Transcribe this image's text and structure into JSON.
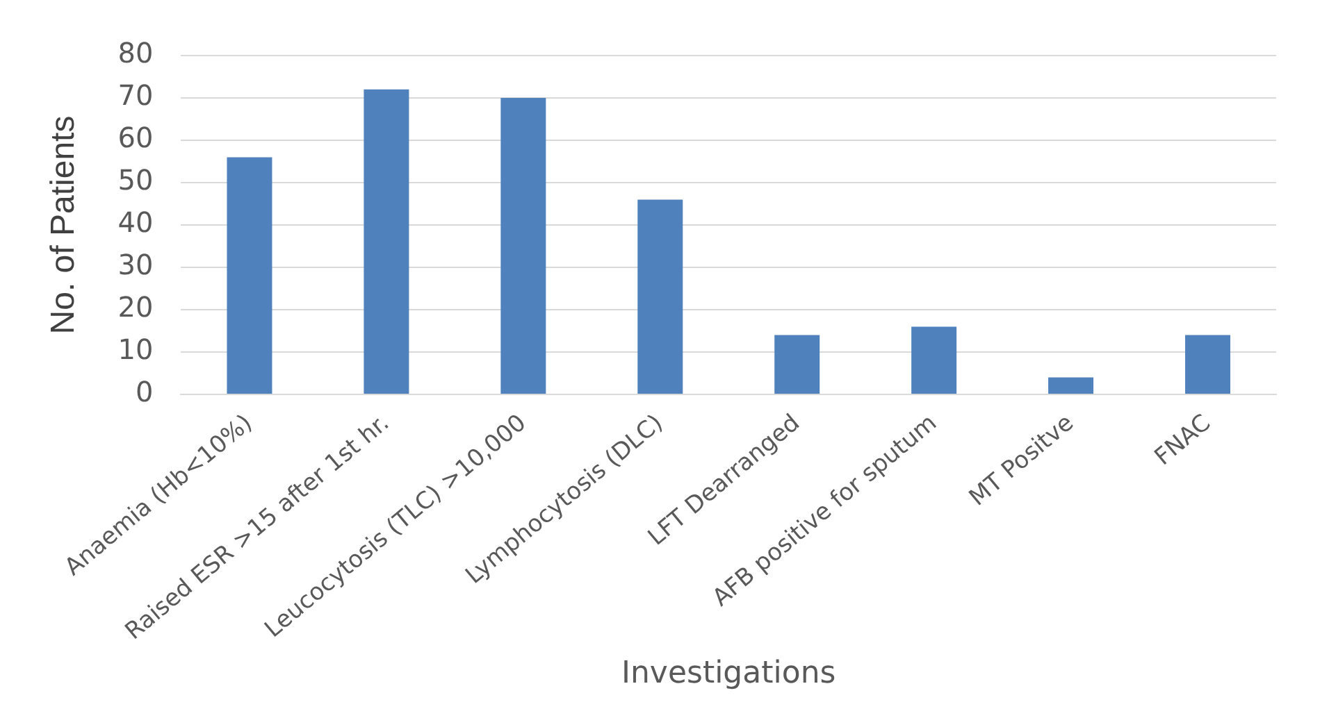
{
  "chart_data": {
    "type": "bar",
    "xlabel": "Investigations",
    "ylabel": "No. of Patients",
    "categories": [
      "Anaemia (Hb<10%)",
      "Raised ESR >15 after 1st hr.",
      "Leucocytosis (TLC) >10,000",
      "Lymphocytosis (DLC)",
      "LFT Dearranged",
      "AFB positive for sputum",
      "MT Positve",
      "FNAC"
    ],
    "values": [
      56,
      72,
      70,
      46,
      14,
      16,
      4,
      14
    ],
    "color": "#4f81bd",
    "ylim": [
      0,
      80
    ],
    "yticks": [
      0,
      10,
      20,
      30,
      40,
      50,
      60,
      70,
      80
    ],
    "grid": "y",
    "legend": false
  }
}
